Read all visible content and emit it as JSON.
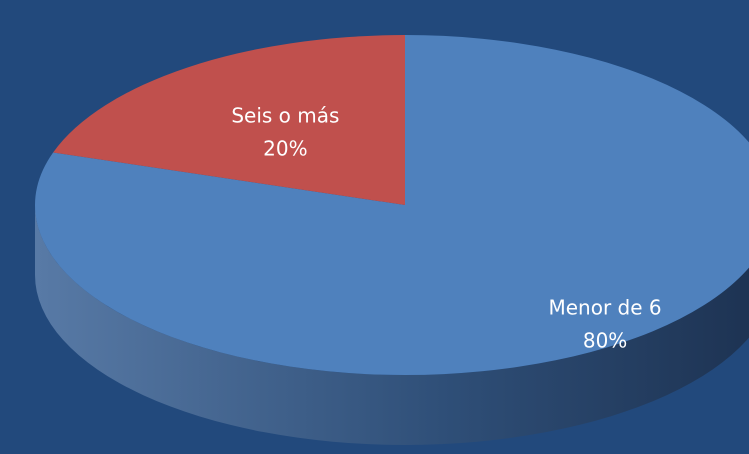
{
  "chart_data": {
    "type": "pie",
    "categories": [
      "Menor de 6",
      "Seis o más"
    ],
    "values": [
      80,
      20
    ],
    "value_labels": [
      "80%",
      "20%"
    ],
    "colors": [
      "#4f81bd",
      "#c0504d"
    ]
  }
}
